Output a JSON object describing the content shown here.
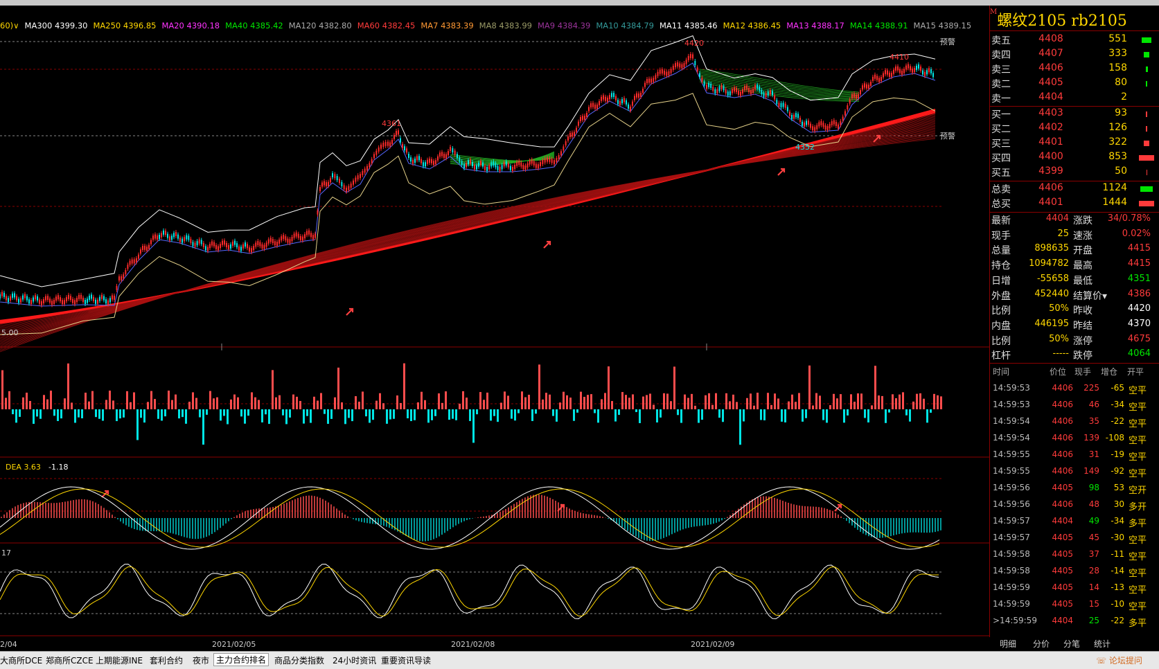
{
  "ma_legend": [
    {
      "text": "60)∨",
      "color": "#ffd700"
    },
    {
      "text": "MA300 4399.30",
      "color": "#ffffff"
    },
    {
      "text": "MA250 4396.85",
      "color": "#ffd700"
    },
    {
      "text": "MA20 4390.18",
      "color": "#ff33ff"
    },
    {
      "text": "MA40 4385.42",
      "color": "#00e600"
    },
    {
      "text": "MA120 4382.80",
      "color": "#aaaaaa"
    },
    {
      "text": "MA60 4382.45",
      "color": "#ff3b3b"
    },
    {
      "text": "MA7 4383.39",
      "color": "#ff9933"
    },
    {
      "text": "MA8 4383.99",
      "color": "#999966"
    },
    {
      "text": "MA9 4384.39",
      "color": "#993399"
    },
    {
      "text": "MA10 4384.79",
      "color": "#339999"
    },
    {
      "text": "MA11 4385.46",
      "color": "#ffffff"
    },
    {
      "text": "MA12 4386.45",
      "color": "#ffd700"
    },
    {
      "text": "MA13 4388.17",
      "color": "#ff33ff"
    },
    {
      "text": "MA14 4388.91",
      "color": "#00e600"
    },
    {
      "text": "MA15 4389.15",
      "color": "#aaaaaa"
    }
  ],
  "price_labels": {
    "p4420": "4420",
    "p4361": "4361",
    "p4352": "4352",
    "p4410": "4410",
    "warn_top": "预警",
    "warn_bot": "预警"
  },
  "panel_labels": {
    "volume": "5.00",
    "macd_dea": "DEA 3.63",
    "macd_val": "-1.18",
    "kdj": "17"
  },
  "dates": [
    "2/04",
    "2021/02/05",
    "2021/02/08",
    "2021/02/09"
  ],
  "quote": {
    "marker": "M",
    "title": "螺纹2105  rb2105",
    "asks": [
      {
        "label": "卖五",
        "price": "4408",
        "vol": "551"
      },
      {
        "label": "卖四",
        "price": "4407",
        "vol": "333"
      },
      {
        "label": "卖三",
        "price": "4406",
        "vol": "158"
      },
      {
        "label": "卖二",
        "price": "4405",
        "vol": "80"
      },
      {
        "label": "卖一",
        "price": "4404",
        "vol": "2"
      }
    ],
    "bids": [
      {
        "label": "买一",
        "price": "4403",
        "vol": "93"
      },
      {
        "label": "买二",
        "price": "4402",
        "vol": "126"
      },
      {
        "label": "买三",
        "price": "4401",
        "vol": "322"
      },
      {
        "label": "买四",
        "price": "4400",
        "vol": "853"
      },
      {
        "label": "买五",
        "price": "4399",
        "vol": "50"
      }
    ],
    "total_sell": {
      "label": "总卖",
      "price": "4406",
      "vol": "1124"
    },
    "total_buy": {
      "label": "总买",
      "price": "4401",
      "vol": "1444"
    },
    "stats_left": [
      {
        "k": "最新",
        "v": "4404",
        "c": "#ff3b3b"
      },
      {
        "k": "现手",
        "v": "25",
        "c": "#ffd700"
      },
      {
        "k": "总量",
        "v": "898635",
        "c": "#ffd700"
      },
      {
        "k": "持仓",
        "v": "1094782",
        "c": "#ffd700"
      },
      {
        "k": "日增",
        "v": "-55658",
        "c": "#ffd700"
      },
      {
        "k": "外盘",
        "v": "452440",
        "c": "#ffd700"
      },
      {
        "k": "比例",
        "v": "50%",
        "c": "#ffd700"
      },
      {
        "k": "内盘",
        "v": "446195",
        "c": "#ffd700"
      },
      {
        "k": "比例",
        "v": "50%",
        "c": "#ffd700"
      },
      {
        "k": "杠杆",
        "v": "-----",
        "c": "#ffd700"
      }
    ],
    "stats_right": [
      {
        "k": "涨跌",
        "v": "34/0.78%",
        "c": "#ff3b3b"
      },
      {
        "k": "速涨",
        "v": "0.02%",
        "c": "#ff3b3b"
      },
      {
        "k": "开盘",
        "v": "4415",
        "c": "#ff3b3b"
      },
      {
        "k": "最高",
        "v": "4415",
        "c": "#ff3b3b"
      },
      {
        "k": "最低",
        "v": "4351",
        "c": "#00e600"
      },
      {
        "k": "结算价▾",
        "v": "4386",
        "c": "#ff3b3b"
      },
      {
        "k": "昨收",
        "v": "4420",
        "c": "#ffffff"
      },
      {
        "k": "昨结",
        "v": "4370",
        "c": "#ffffff"
      },
      {
        "k": "涨停",
        "v": "4675",
        "c": "#ff3b3b"
      },
      {
        "k": "跌停",
        "v": "4064",
        "c": "#00e600"
      }
    ],
    "tick_header": {
      "time": "时间",
      "price": "价位",
      "now": "现手",
      "inc": "增仓",
      "oc": "开平"
    },
    "ticks": [
      {
        "t": "14:59:53",
        "p": "4406",
        "n": "225",
        "i": "-65",
        "o": "空平"
      },
      {
        "t": "14:59:53",
        "p": "4406",
        "n": "46",
        "i": "-34",
        "o": "空平"
      },
      {
        "t": "14:59:54",
        "p": "4406",
        "n": "35",
        "i": "-22",
        "o": "空平"
      },
      {
        "t": "14:59:54",
        "p": "4406",
        "n": "139",
        "i": "-108",
        "o": "空平"
      },
      {
        "t": "14:59:55",
        "p": "4406",
        "n": "31",
        "i": "-19",
        "o": "空平"
      },
      {
        "t": "14:59:55",
        "p": "4406",
        "n": "149",
        "i": "-92",
        "o": "空平"
      },
      {
        "t": "14:59:56",
        "p": "4405",
        "n": "98",
        "i": "53",
        "o": "空开"
      },
      {
        "t": "14:59:56",
        "p": "4406",
        "n": "48",
        "i": "30",
        "o": "多开"
      },
      {
        "t": "14:59:57",
        "p": "4404",
        "n": "49",
        "i": "-34",
        "o": "多平"
      },
      {
        "t": "14:59:57",
        "p": "4405",
        "n": "45",
        "i": "-30",
        "o": "空平"
      },
      {
        "t": "14:59:58",
        "p": "4405",
        "n": "37",
        "i": "-11",
        "o": "空平"
      },
      {
        "t": "14:59:58",
        "p": "4405",
        "n": "28",
        "i": "-14",
        "o": "空平"
      },
      {
        "t": "14:59:59",
        "p": "4405",
        "n": "14",
        "i": "-13",
        "o": "空平"
      },
      {
        "t": "14:59:59",
        "p": "4405",
        "n": "15",
        "i": "-10",
        "o": "空平"
      },
      {
        "t": ">14:59:59",
        "p": "4404",
        "n": "25",
        "i": "-22",
        "o": "多平"
      }
    ],
    "tabs": [
      "明细",
      "分价",
      "分笔",
      "统计"
    ]
  },
  "bottom_tabs": [
    "大商所DCE",
    "郑商所CZCE",
    "上期能源INE",
    "套利合约",
    "夜市",
    "主力合约排名",
    "商品分类指数",
    "24小时资讯",
    "重要资讯导读"
  ],
  "bottom_right": "论坛提问",
  "colors": {
    "up": "#ff3b3b",
    "down": "#00e5e5",
    "grid": "#8b0000"
  }
}
